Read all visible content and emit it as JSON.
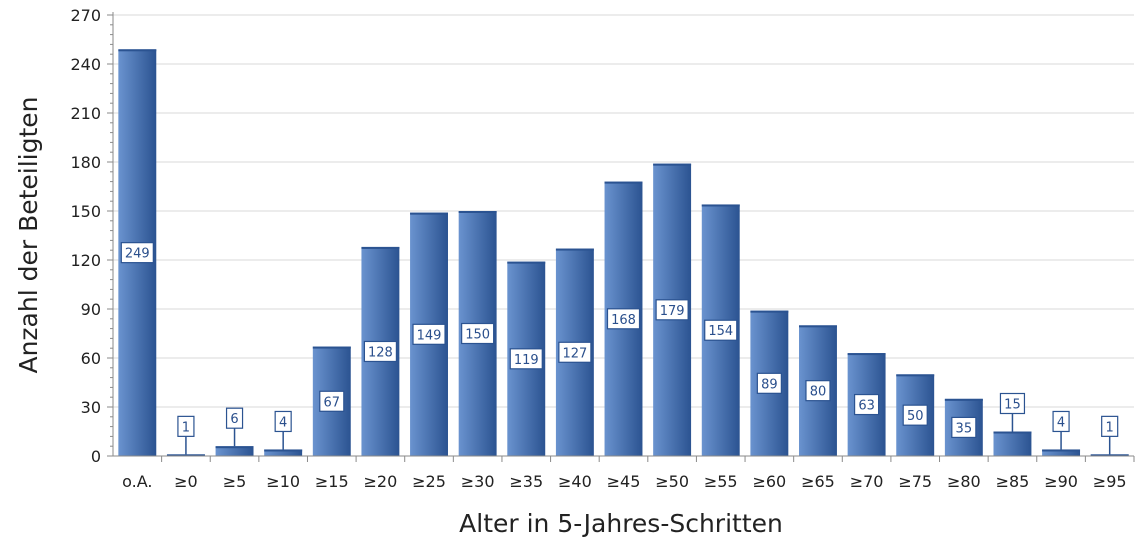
{
  "chart_data": {
    "type": "bar",
    "title": "",
    "xlabel": "Alter in 5-Jahres-Schritten",
    "ylabel": "Anzahl der Beteiligten",
    "categories": [
      "o.A.",
      "≥0",
      "≥5",
      "≥10",
      "≥15",
      "≥20",
      "≥25",
      "≥30",
      "≥35",
      "≥40",
      "≥45",
      "≥50",
      "≥55",
      "≥60",
      "≥65",
      "≥70",
      "≥75",
      "≥80",
      "≥85",
      "≥90",
      "≥95"
    ],
    "values": [
      249,
      1,
      6,
      4,
      67,
      128,
      149,
      150,
      119,
      127,
      168,
      179,
      154,
      89,
      80,
      63,
      50,
      35,
      15,
      4,
      1
    ],
    "data_labels": [
      "249",
      "1",
      "6",
      "4",
      "67",
      "128",
      "149",
      "150",
      "119",
      "127",
      "168",
      "179",
      "154",
      "89",
      "80",
      "63",
      "50",
      "35",
      "15",
      "4",
      "1"
    ],
    "ylim": [
      0,
      270
    ],
    "yticks": [
      0,
      30,
      60,
      90,
      120,
      150,
      180,
      210,
      240,
      270
    ],
    "ytick_labels": [
      "0",
      "30",
      "60",
      "90",
      "120",
      "150",
      "180",
      "210",
      "240",
      "270"
    ],
    "grid": true,
    "legend": "none",
    "colors": {
      "bar_light": "#6a93cf",
      "bar_dark": "#2b5391",
      "label_border": "#2b5391",
      "label_text": "#2a4f8c",
      "grid": "#d9d9d9",
      "axis": "#8a8a8a"
    }
  }
}
